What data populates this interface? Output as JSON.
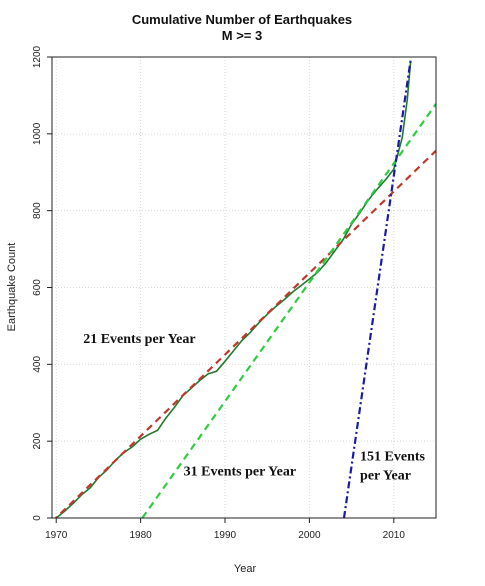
{
  "chart_data": {
    "type": "line",
    "title": "Cumulative Number of Earthquakes",
    "subtitle": "M >= 3",
    "xlabel": "Year",
    "ylabel": "Earthquake Count",
    "xlim": [
      1969.5,
      2015
    ],
    "ylim": [
      0,
      1200
    ],
    "xticks": [
      1970,
      1980,
      1990,
      2000,
      2010
    ],
    "yticks": [
      0,
      200,
      400,
      600,
      800,
      1000,
      1200
    ],
    "grid": true,
    "series": [
      {
        "color": "#1f7a2e",
        "style": "solid",
        "x": [
          1970,
          1971,
          1972,
          1973,
          1974,
          1975,
          1976,
          1977,
          1978,
          1979,
          1980,
          1981,
          1982,
          1983,
          1984,
          1985,
          1986,
          1987,
          1988,
          1989,
          1990,
          1991,
          1992,
          1993,
          1994,
          1995,
          1996,
          1997,
          1998,
          1999,
          2000,
          2001,
          2002,
          2003,
          2004,
          2005,
          2006,
          2007,
          2008,
          2009,
          2010,
          2011,
          2011.6,
          2012
        ],
        "y": [
          0,
          18,
          38,
          60,
          78,
          105,
          125,
          150,
          170,
          185,
          205,
          218,
          228,
          260,
          288,
          318,
          338,
          358,
          375,
          382,
          408,
          435,
          462,
          483,
          508,
          530,
          550,
          568,
          588,
          605,
          622,
          640,
          665,
          695,
          725,
          765,
          795,
          828,
          855,
          880,
          908,
          990,
          1090,
          1190
        ]
      },
      {
        "color": "#c0392b",
        "style": "dashed",
        "x": [
          1969.5,
          2015
        ],
        "y": [
          -10,
          956
        ]
      },
      {
        "color": "#2ecc40",
        "style": "dashed",
        "x": [
          1980.2,
          2015
        ],
        "y": [
          0,
          1078
        ]
      },
      {
        "color": "#1a1aa6",
        "style": "dashdot",
        "x": [
          2004.1,
          2012
        ],
        "y": [
          0,
          1193
        ]
      }
    ],
    "annotations": [
      {
        "text": "21 Events per Year",
        "x": 1973.2,
        "y": 455
      },
      {
        "text": "31 Events per Year",
        "x": 1985.1,
        "y": 110
      },
      {
        "text": "151 Events",
        "x": 2006.0,
        "y": 150
      },
      {
        "text": "per Year",
        "x": 2006.0,
        "y": 100
      }
    ]
  }
}
